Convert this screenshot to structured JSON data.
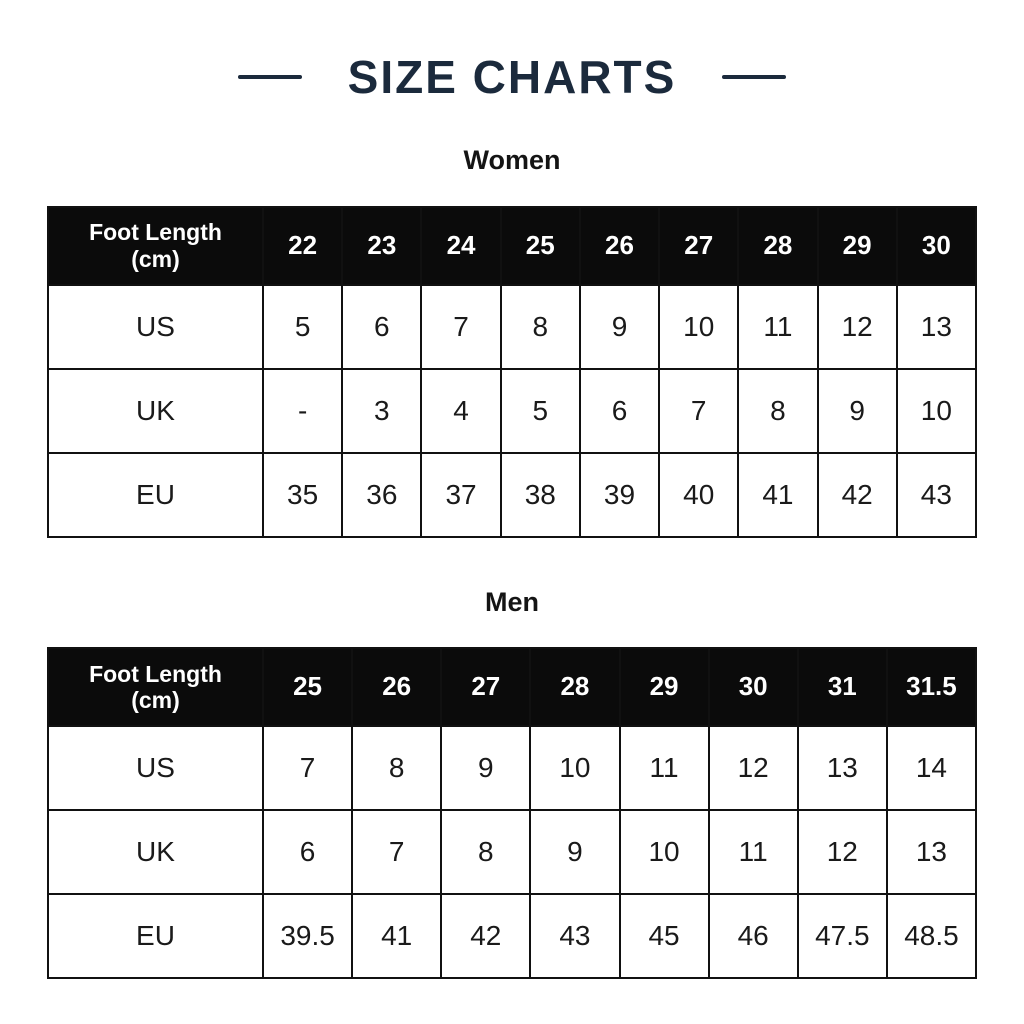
{
  "title": {
    "text": "SIZE CHARTS",
    "accent_color": "#1b2a3c"
  },
  "colors": {
    "header_background": "#0b0b0b",
    "header_text": "#ffffff",
    "body_text": "#1a1a1a",
    "table_border": "#111111",
    "header_divider": "#f2f2f2"
  },
  "chart_data": [
    {
      "type": "table",
      "title": "Women",
      "header_label": "Foot Length (cm)",
      "foot_lengths_cm": [
        "22",
        "23",
        "24",
        "25",
        "26",
        "27",
        "28",
        "29",
        "30"
      ],
      "rows": [
        {
          "label": "US",
          "values": [
            "5",
            "6",
            "7",
            "8",
            "9",
            "10",
            "11",
            "12",
            "13"
          ]
        },
        {
          "label": "UK",
          "values": [
            "-",
            "3",
            "4",
            "5",
            "6",
            "7",
            "8",
            "9",
            "10"
          ]
        },
        {
          "label": "EU",
          "values": [
            "35",
            "36",
            "37",
            "38",
            "39",
            "40",
            "41",
            "42",
            "43"
          ]
        }
      ]
    },
    {
      "type": "table",
      "title": "Men",
      "header_label": "Foot Length (cm)",
      "foot_lengths_cm": [
        "25",
        "26",
        "27",
        "28",
        "29",
        "30",
        "31",
        "31.5"
      ],
      "rows": [
        {
          "label": "US",
          "values": [
            "7",
            "8",
            "9",
            "10",
            "11",
            "12",
            "13",
            "14"
          ]
        },
        {
          "label": "UK",
          "values": [
            "6",
            "7",
            "8",
            "9",
            "10",
            "11",
            "12",
            "13"
          ]
        },
        {
          "label": "EU",
          "values": [
            "39.5",
            "41",
            "42",
            "43",
            "45",
            "46",
            "47.5",
            "48.5"
          ]
        }
      ]
    }
  ]
}
